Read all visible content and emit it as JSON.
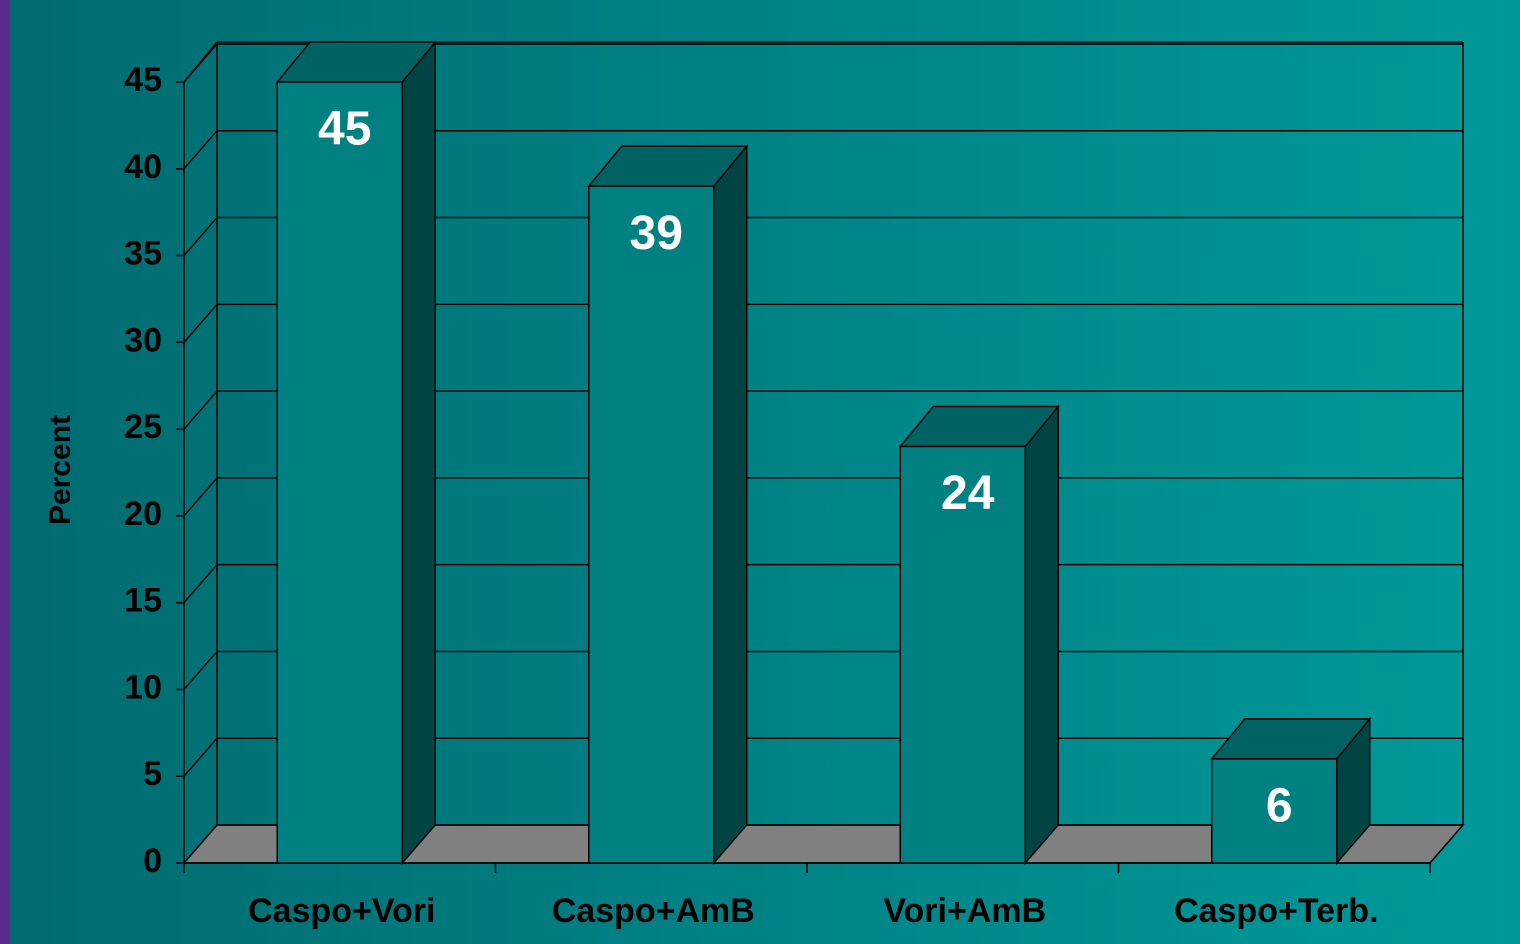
{
  "chart_data": {
    "type": "bar",
    "y_label": "Percent",
    "categories": [
      "Caspo+Vori",
      "Caspo+AmB",
      "Vori+AmB",
      "Caspo+Terb."
    ],
    "values": [
      45,
      39,
      24,
      6
    ],
    "color": "#008080",
    "ylim": [
      0,
      45
    ],
    "yticks": [
      0,
      5,
      10,
      15,
      20,
      25,
      30,
      35,
      40,
      45
    ],
    "grid": true
  }
}
